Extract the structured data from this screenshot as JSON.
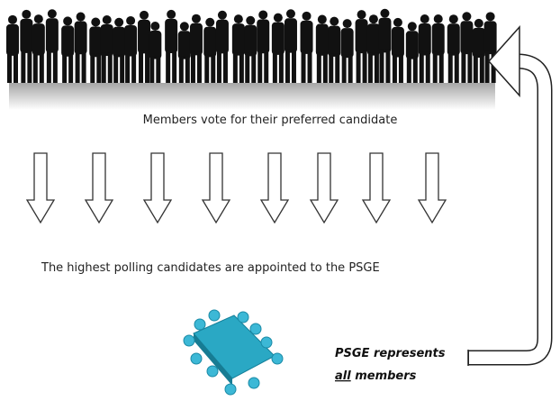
{
  "labels": {
    "vote": "Members vote for their preferred candidate",
    "appointed": "The highest polling candidates are appointed to the PSGE"
  },
  "note": {
    "line1": "PSGE represents",
    "emphasis": "all",
    "rest": "members"
  }
}
